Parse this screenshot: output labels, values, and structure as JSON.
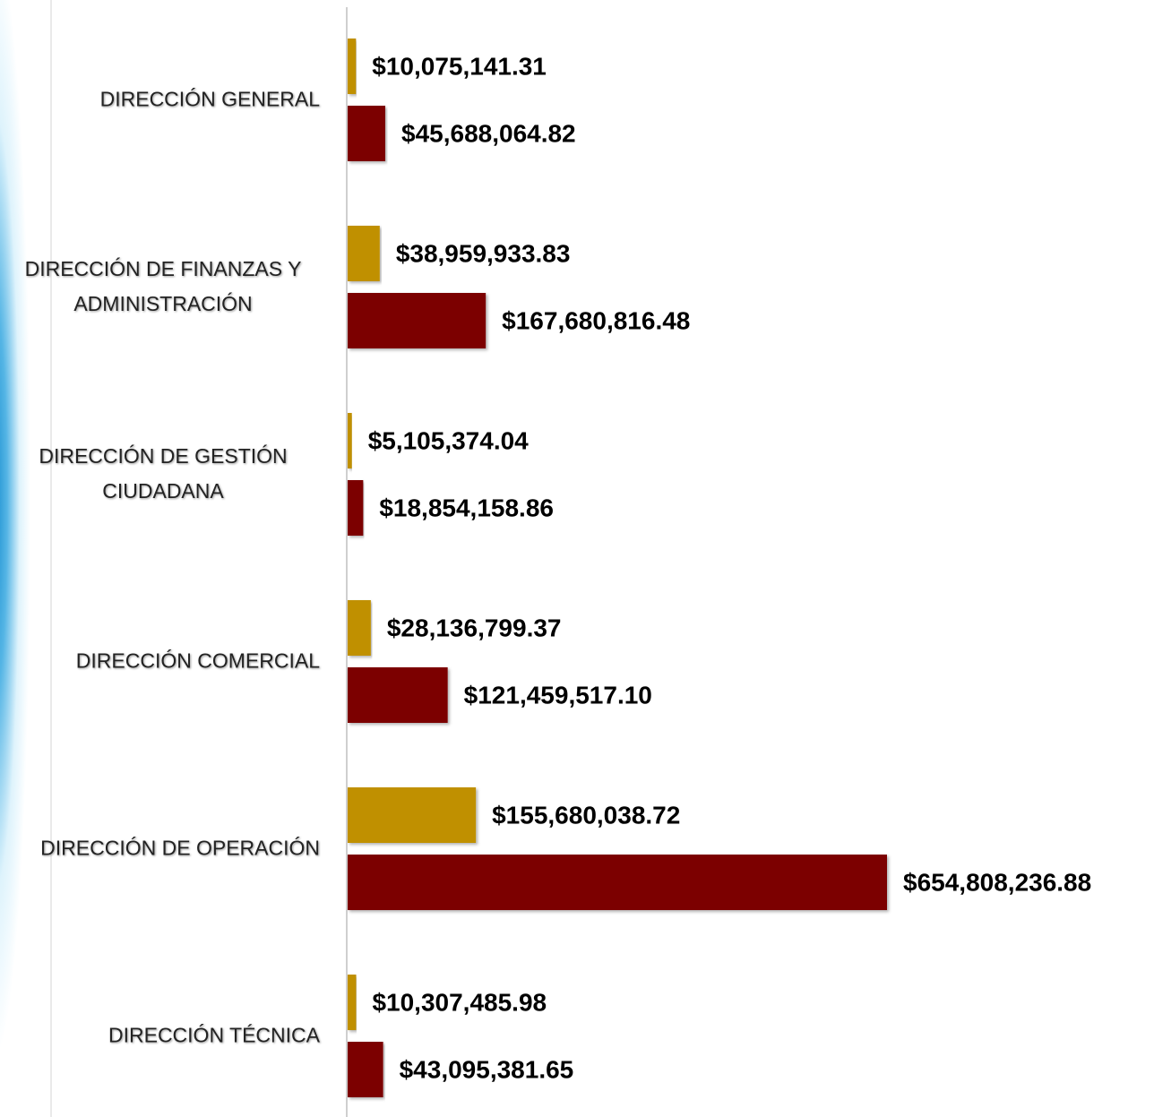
{
  "chart_data": {
    "type": "bar",
    "orientation": "horizontal",
    "categories": [
      "DIRECCIÓN GENERAL",
      "DIRECCIÓN DE FINANZAS Y ADMINISTRACIÓN",
      "DIRECCIÓN DE GESTIÓN CIUDADANA",
      "DIRECCIÓN COMERCIAL",
      "DIRECCIÓN DE OPERACIÓN",
      "DIRECCIÓN TÉCNICA"
    ],
    "series": [
      {
        "color": "#c09000",
        "values": [
          10075141.31,
          38959933.83,
          5105374.04,
          28136799.37,
          155680038.72,
          10307485.98
        ],
        "value_labels": [
          "$10,075,141.31",
          "$38,959,933.83",
          "$5,105,374.04",
          "$28,136,799.37",
          "$155,680,038.72",
          "$10,307,485.98"
        ]
      },
      {
        "color": "#7b0000",
        "values": [
          45688064.82,
          167680816.48,
          18854158.86,
          121459517.1,
          654808236.88,
          43095381.65
        ],
        "value_labels": [
          "$45,688,064.82",
          "$167,680,816.48",
          "$18,854,158.86",
          "$121,459,517.10",
          "$654,808,236.88",
          "$43,095,381.65"
        ]
      }
    ]
  }
}
